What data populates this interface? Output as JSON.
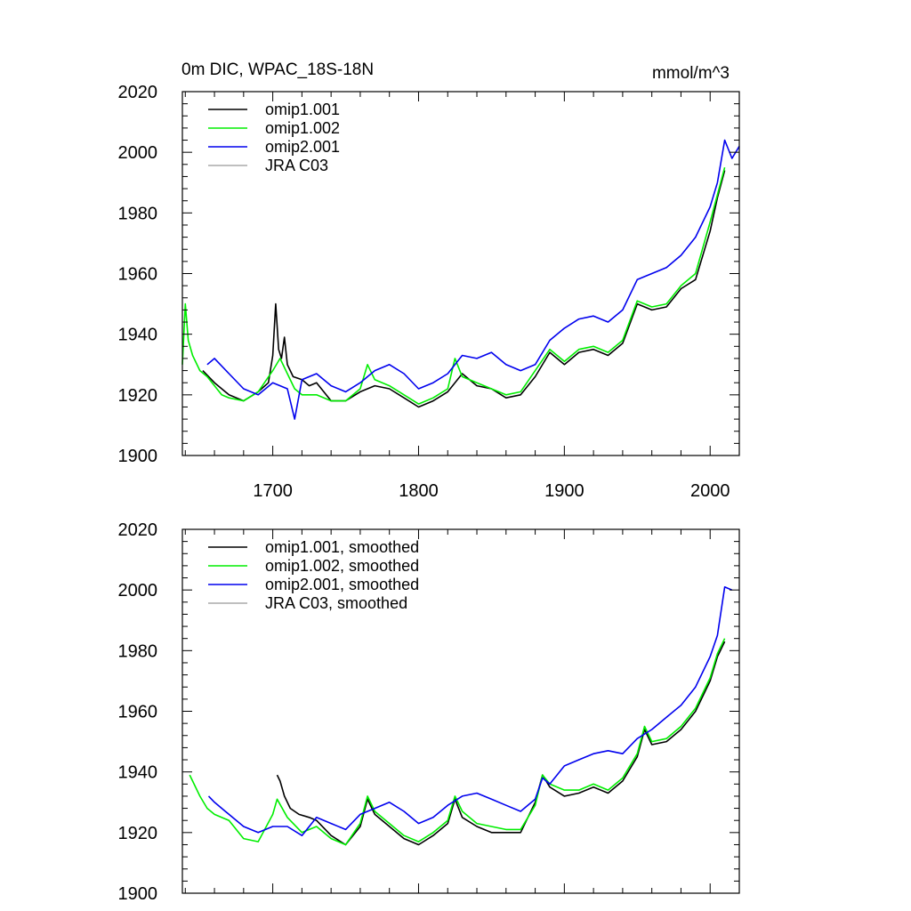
{
  "figure": {
    "title_left": "0m DIC, WPAC_18S-18N",
    "title_right": "mmol/m^3"
  },
  "chart_data": [
    {
      "type": "line",
      "title": "0m DIC, WPAC_18S-18N",
      "units": "mmol/m^3",
      "xlim": [
        1638,
        2020
      ],
      "ylim": [
        1900,
        2020
      ],
      "x_ticks": [
        1700,
        1800,
        1900,
        2000
      ],
      "x_tick_labels": [
        "1700",
        "1800",
        "1900",
        "2000"
      ],
      "y_ticks": [
        1900,
        1920,
        1940,
        1960,
        1980,
        2000,
        2020
      ],
      "y_tick_labels": [
        "1900",
        "1920",
        "1940",
        "1960",
        "1980",
        "2000",
        "2020"
      ],
      "grid": false,
      "legend_position": "top-left",
      "series": [
        {
          "name": "omip1.001",
          "color": "#000000",
          "x": [
            1652,
            1660,
            1670,
            1680,
            1690,
            1697,
            1700,
            1702,
            1704,
            1706,
            1708,
            1710,
            1714,
            1720,
            1725,
            1730,
            1740,
            1750,
            1760,
            1770,
            1780,
            1790,
            1800,
            1810,
            1820,
            1830,
            1840,
            1850,
            1860,
            1870,
            1880,
            1890,
            1900,
            1910,
            1920,
            1930,
            1940,
            1950,
            1960,
            1970,
            1980,
            1990,
            2000,
            2005,
            2010
          ],
          "y": [
            1928,
            1924,
            1920,
            1918,
            1921,
            1924,
            1933,
            1950,
            1935,
            1932,
            1939,
            1930,
            1926,
            1925,
            1923,
            1924,
            1918,
            1918,
            1921,
            1923,
            1922,
            1919,
            1916,
            1918,
            1921,
            1927,
            1923,
            1922,
            1919,
            1920,
            1926,
            1934,
            1930,
            1934,
            1935,
            1933,
            1937,
            1950,
            1948,
            1949,
            1955,
            1958,
            1974,
            1985,
            1994
          ]
        },
        {
          "name": "omip1.002",
          "color": "#00ee00",
          "x": [
            1638,
            1640,
            1642,
            1645,
            1650,
            1655,
            1660,
            1665,
            1670,
            1680,
            1690,
            1700,
            1705,
            1710,
            1715,
            1720,
            1730,
            1740,
            1750,
            1760,
            1765,
            1770,
            1780,
            1790,
            1800,
            1810,
            1820,
            1825,
            1830,
            1840,
            1850,
            1860,
            1870,
            1880,
            1890,
            1900,
            1910,
            1920,
            1930,
            1940,
            1950,
            1960,
            1970,
            1980,
            1990,
            2000,
            2005,
            2010
          ],
          "y": [
            1930,
            1950,
            1938,
            1933,
            1928,
            1926,
            1923,
            1920,
            1919,
            1918,
            1921,
            1928,
            1932,
            1927,
            1922,
            1920,
            1920,
            1918,
            1918,
            1922,
            1930,
            1925,
            1923,
            1920,
            1917,
            1919,
            1922,
            1932,
            1926,
            1924,
            1922,
            1920,
            1921,
            1928,
            1935,
            1931,
            1935,
            1936,
            1934,
            1938,
            1951,
            1949,
            1950,
            1956,
            1960,
            1977,
            1986,
            1995
          ]
        },
        {
          "name": "omip2.001",
          "color": "#0000ee",
          "x": [
            1655,
            1660,
            1670,
            1680,
            1690,
            1700,
            1710,
            1715,
            1720,
            1730,
            1740,
            1750,
            1760,
            1770,
            1780,
            1790,
            1800,
            1810,
            1820,
            1830,
            1840,
            1850,
            1860,
            1870,
            1880,
            1890,
            1900,
            1910,
            1920,
            1930,
            1940,
            1950,
            1960,
            1970,
            1980,
            1990,
            2000,
            2005,
            2010,
            2015,
            2020
          ],
          "y": [
            1930,
            1932,
            1927,
            1922,
            1920,
            1924,
            1922,
            1912,
            1925,
            1927,
            1923,
            1921,
            1924,
            1928,
            1930,
            1927,
            1922,
            1924,
            1927,
            1933,
            1932,
            1934,
            1930,
            1928,
            1930,
            1938,
            1942,
            1945,
            1946,
            1944,
            1948,
            1958,
            1960,
            1962,
            1966,
            1972,
            1982,
            1990,
            2004,
            1998,
            2002
          ]
        },
        {
          "name": "JRA C03",
          "color": "#aaaaaa",
          "x": [],
          "y": []
        }
      ]
    },
    {
      "type": "line",
      "xlim": [
        1638,
        2020
      ],
      "ylim": [
        1900,
        2020
      ],
      "x_ticks": [
        1700,
        1800,
        1900,
        2000
      ],
      "y_ticks": [
        1900,
        1920,
        1940,
        1960,
        1980,
        2000,
        2020
      ],
      "y_tick_labels": [
        "1900",
        "1920",
        "1940",
        "1960",
        "1980",
        "2000",
        "2020"
      ],
      "grid": false,
      "legend_position": "top-left",
      "series": [
        {
          "name": "omip1.001, smoothed",
          "color": "#000000",
          "x": [
            1703,
            1705,
            1708,
            1712,
            1718,
            1725,
            1730,
            1740,
            1750,
            1760,
            1765,
            1770,
            1780,
            1790,
            1800,
            1810,
            1820,
            1825,
            1830,
            1840,
            1850,
            1860,
            1870,
            1880,
            1885,
            1890,
            1900,
            1910,
            1920,
            1930,
            1940,
            1950,
            1955,
            1960,
            1970,
            1980,
            1990,
            2000,
            2005,
            2010
          ],
          "y": [
            1939,
            1937,
            1932,
            1928,
            1926,
            1925,
            1924,
            1919,
            1916,
            1922,
            1931,
            1926,
            1922,
            1918,
            1916,
            1919,
            1923,
            1931,
            1925,
            1922,
            1920,
            1920,
            1920,
            1930,
            1939,
            1935,
            1932,
            1933,
            1935,
            1933,
            1937,
            1945,
            1954,
            1949,
            1950,
            1954,
            1960,
            1970,
            1978,
            1983
          ]
        },
        {
          "name": "omip1.002, smoothed",
          "color": "#00ee00",
          "x": [
            1643,
            1645,
            1650,
            1655,
            1660,
            1670,
            1680,
            1690,
            1700,
            1703,
            1710,
            1720,
            1730,
            1740,
            1750,
            1760,
            1765,
            1770,
            1780,
            1790,
            1800,
            1810,
            1820,
            1825,
            1830,
            1840,
            1850,
            1860,
            1870,
            1880,
            1885,
            1890,
            1900,
            1910,
            1920,
            1930,
            1940,
            1950,
            1955,
            1960,
            1970,
            1980,
            1990,
            2000,
            2005,
            2010
          ],
          "y": [
            1939,
            1937,
            1932,
            1928,
            1926,
            1924,
            1918,
            1917,
            1926,
            1931,
            1925,
            1920,
            1922,
            1918,
            1916,
            1923,
            1932,
            1927,
            1923,
            1919,
            1917,
            1920,
            1924,
            1932,
            1927,
            1923,
            1922,
            1921,
            1921,
            1929,
            1939,
            1936,
            1934,
            1934,
            1936,
            1934,
            1938,
            1946,
            1955,
            1950,
            1951,
            1955,
            1961,
            1971,
            1979,
            1984
          ]
        },
        {
          "name": "omip2.001, smoothed",
          "color": "#0000ee",
          "x": [
            1656,
            1660,
            1670,
            1680,
            1690,
            1700,
            1710,
            1720,
            1730,
            1740,
            1750,
            1760,
            1770,
            1780,
            1790,
            1800,
            1810,
            1820,
            1830,
            1840,
            1850,
            1860,
            1870,
            1880,
            1885,
            1890,
            1900,
            1910,
            1920,
            1930,
            1940,
            1950,
            1960,
            1970,
            1980,
            1990,
            2000,
            2005,
            2010,
            2015
          ],
          "y": [
            1932,
            1930,
            1926,
            1922,
            1920,
            1922,
            1922,
            1919,
            1925,
            1923,
            1921,
            1926,
            1928,
            1930,
            1927,
            1923,
            1925,
            1929,
            1932,
            1933,
            1931,
            1929,
            1927,
            1931,
            1938,
            1936,
            1942,
            1944,
            1946,
            1947,
            1946,
            1951,
            1954,
            1958,
            1962,
            1968,
            1978,
            1985,
            2001,
            2000
          ]
        },
        {
          "name": "JRA C03, smoothed",
          "color": "#aaaaaa",
          "x": [],
          "y": []
        }
      ]
    }
  ]
}
